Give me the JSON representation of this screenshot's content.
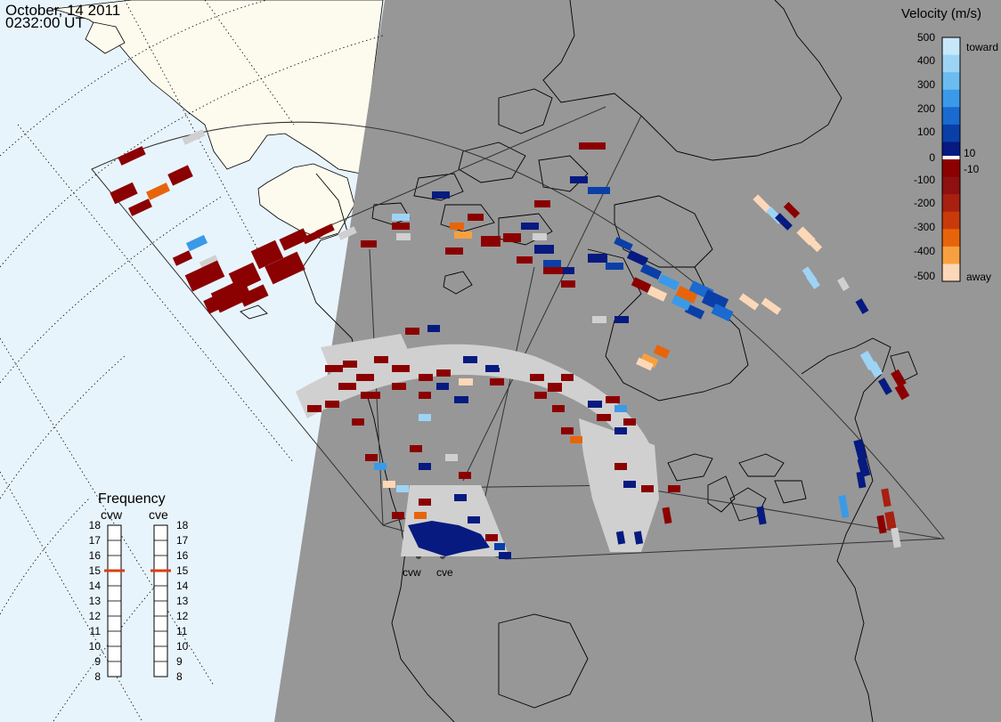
{
  "header": {
    "date": "October, 14 2011",
    "time": "0232:00 UT"
  },
  "radars": [
    "cvw",
    "cve"
  ],
  "legend": {
    "title": "Velocity (m/s)",
    "ticks": [
      "500",
      "400",
      "300",
      "200",
      "100",
      "10",
      "0",
      "-10",
      "-100",
      "-200",
      "-300",
      "-400",
      "-500"
    ],
    "toward_label": "toward",
    "away_label": "away",
    "colors": [
      "#c8e8fa",
      "#9dd4f5",
      "#6cbcf0",
      "#3a9ae8",
      "#1a6ad0",
      "#0a3fa8",
      "#061a80",
      "#8b0000",
      "#8e1010",
      "#a82010",
      "#c83a0a",
      "#e8640a",
      "#f8a040",
      "#fcd8b8"
    ]
  },
  "frequency": {
    "title": "Frequency",
    "left_label": "cvw",
    "right_label": "cve",
    "ticks": [
      "18",
      "17",
      "16",
      "15",
      "14",
      "13",
      "12",
      "11",
      "10",
      "9",
      "8"
    ],
    "cvw_value": 15,
    "cve_value": 15,
    "marker_color": "#d84010"
  },
  "map_colors": {
    "ocean": "#e8f4fc",
    "land_day": "#fdfbee",
    "night": "#979797",
    "ground_scatter": "#d0d0d0"
  }
}
